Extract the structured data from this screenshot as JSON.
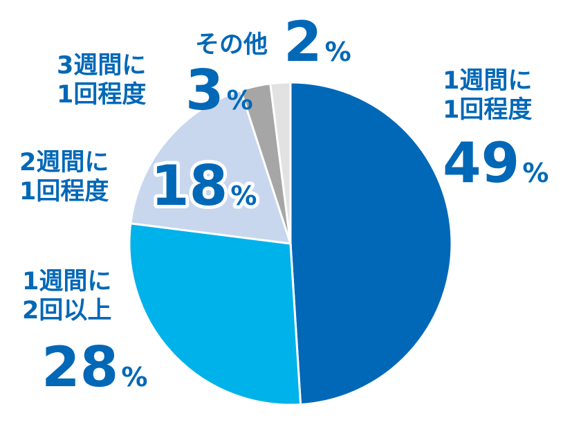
{
  "chart_data": {
    "type": "pie",
    "start": "12 o'clock",
    "direction": "clockwise",
    "slices": [
      {
        "label": [
          "1週間に",
          "1回程度"
        ],
        "value": 49,
        "display": "49",
        "unit": "%",
        "color": "#0068b7",
        "text_color": "#0068b7"
      },
      {
        "label": [
          "1週間に",
          "2回以上"
        ],
        "value": 28,
        "display": "28",
        "unit": "%",
        "color": "#00b2ea",
        "text_color": "#0068b7"
      },
      {
        "label": [
          "2週間に",
          "1回程度"
        ],
        "value": 18,
        "display": "18",
        "unit": "%",
        "color": "#c8d7ee",
        "text_color": "#0068b7"
      },
      {
        "label": [
          "3週間に",
          "1回程度"
        ],
        "value": 3,
        "display": "3",
        "unit": "%",
        "color": "#a6a6a6",
        "text_color": "#0068b7"
      },
      {
        "label": [
          "その他"
        ],
        "value": 2,
        "display": "2",
        "unit": "%",
        "color": "#e2e2e2",
        "text_color": "#0068b7"
      }
    ]
  }
}
